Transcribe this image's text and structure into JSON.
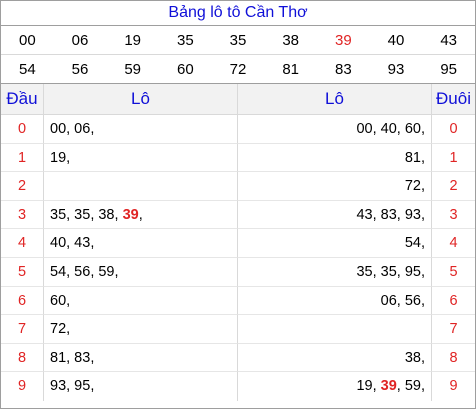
{
  "title": "Bảng lô tô Cần Thơ",
  "numbers_row1": [
    "00",
    "06",
    "19",
    "35",
    "35",
    "38",
    "39",
    "40",
    "43"
  ],
  "numbers_row2": [
    "54",
    "56",
    "59",
    "60",
    "72",
    "81",
    "83",
    "93",
    "95"
  ],
  "highlight_color": "#e02424",
  "header": {
    "dau": "Đầu",
    "lo_left": "Lô",
    "lo_right": "Lô",
    "duoi": "Đuôi"
  },
  "rows": [
    {
      "dau": "0",
      "lo_left": "00, 06,",
      "lo_right": "00, 40, 60,",
      "duoi": "0"
    },
    {
      "dau": "1",
      "lo_left": "19,",
      "lo_right": "81,",
      "duoi": "1"
    },
    {
      "dau": "2",
      "lo_left": "",
      "lo_right": "72,",
      "duoi": "2"
    },
    {
      "dau": "3",
      "lo_left": "35, 35, 38, ",
      "lo_left_hl": "39",
      "lo_left_tail": ",",
      "lo_right": "43, 83, 93,",
      "duoi": "3"
    },
    {
      "dau": "4",
      "lo_left": "40, 43,",
      "lo_right": "54,",
      "duoi": "4"
    },
    {
      "dau": "5",
      "lo_left": "54, 56, 59,",
      "lo_right": "35, 35, 95,",
      "duoi": "5"
    },
    {
      "dau": "6",
      "lo_left": "60,",
      "lo_right": "06, 56,",
      "duoi": "6"
    },
    {
      "dau": "7",
      "lo_left": "72,",
      "lo_right": "",
      "duoi": "7"
    },
    {
      "dau": "8",
      "lo_left": "81, 83,",
      "lo_right": "38,",
      "duoi": "8"
    },
    {
      "dau": "9",
      "lo_left": "93, 95,",
      "lo_right": "19, ",
      "lo_right_hl": "39",
      "lo_right_tail": ", 59,",
      "duoi": "9"
    }
  ]
}
